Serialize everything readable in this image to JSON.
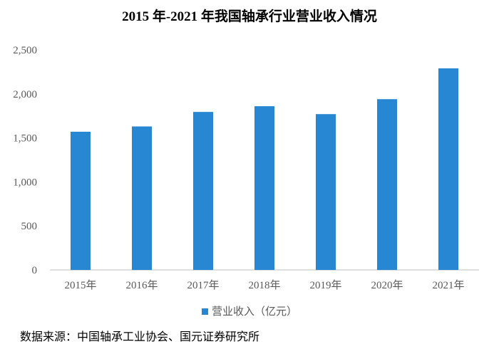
{
  "chart_data": {
    "type": "bar",
    "title": "2015 年-2021 年我国轴承行业营业收入情况",
    "categories": [
      "2015年",
      "2016年",
      "2017年",
      "2018年",
      "2019年",
      "2020年",
      "2021年"
    ],
    "series": [
      {
        "name": "营业收入（亿元）",
        "values": [
          1570,
          1630,
          1795,
          1860,
          1770,
          1940,
          2290
        ],
        "color": "#2787d2"
      }
    ],
    "y_ticks": [
      "0",
      "500",
      "1,000",
      "1,500",
      "2,000",
      "2,500"
    ],
    "ylim": [
      0,
      2500
    ],
    "grid": false,
    "legend": "bottom"
  },
  "source_note": "数据来源：中国轴承工业协会、国元证券研究所"
}
